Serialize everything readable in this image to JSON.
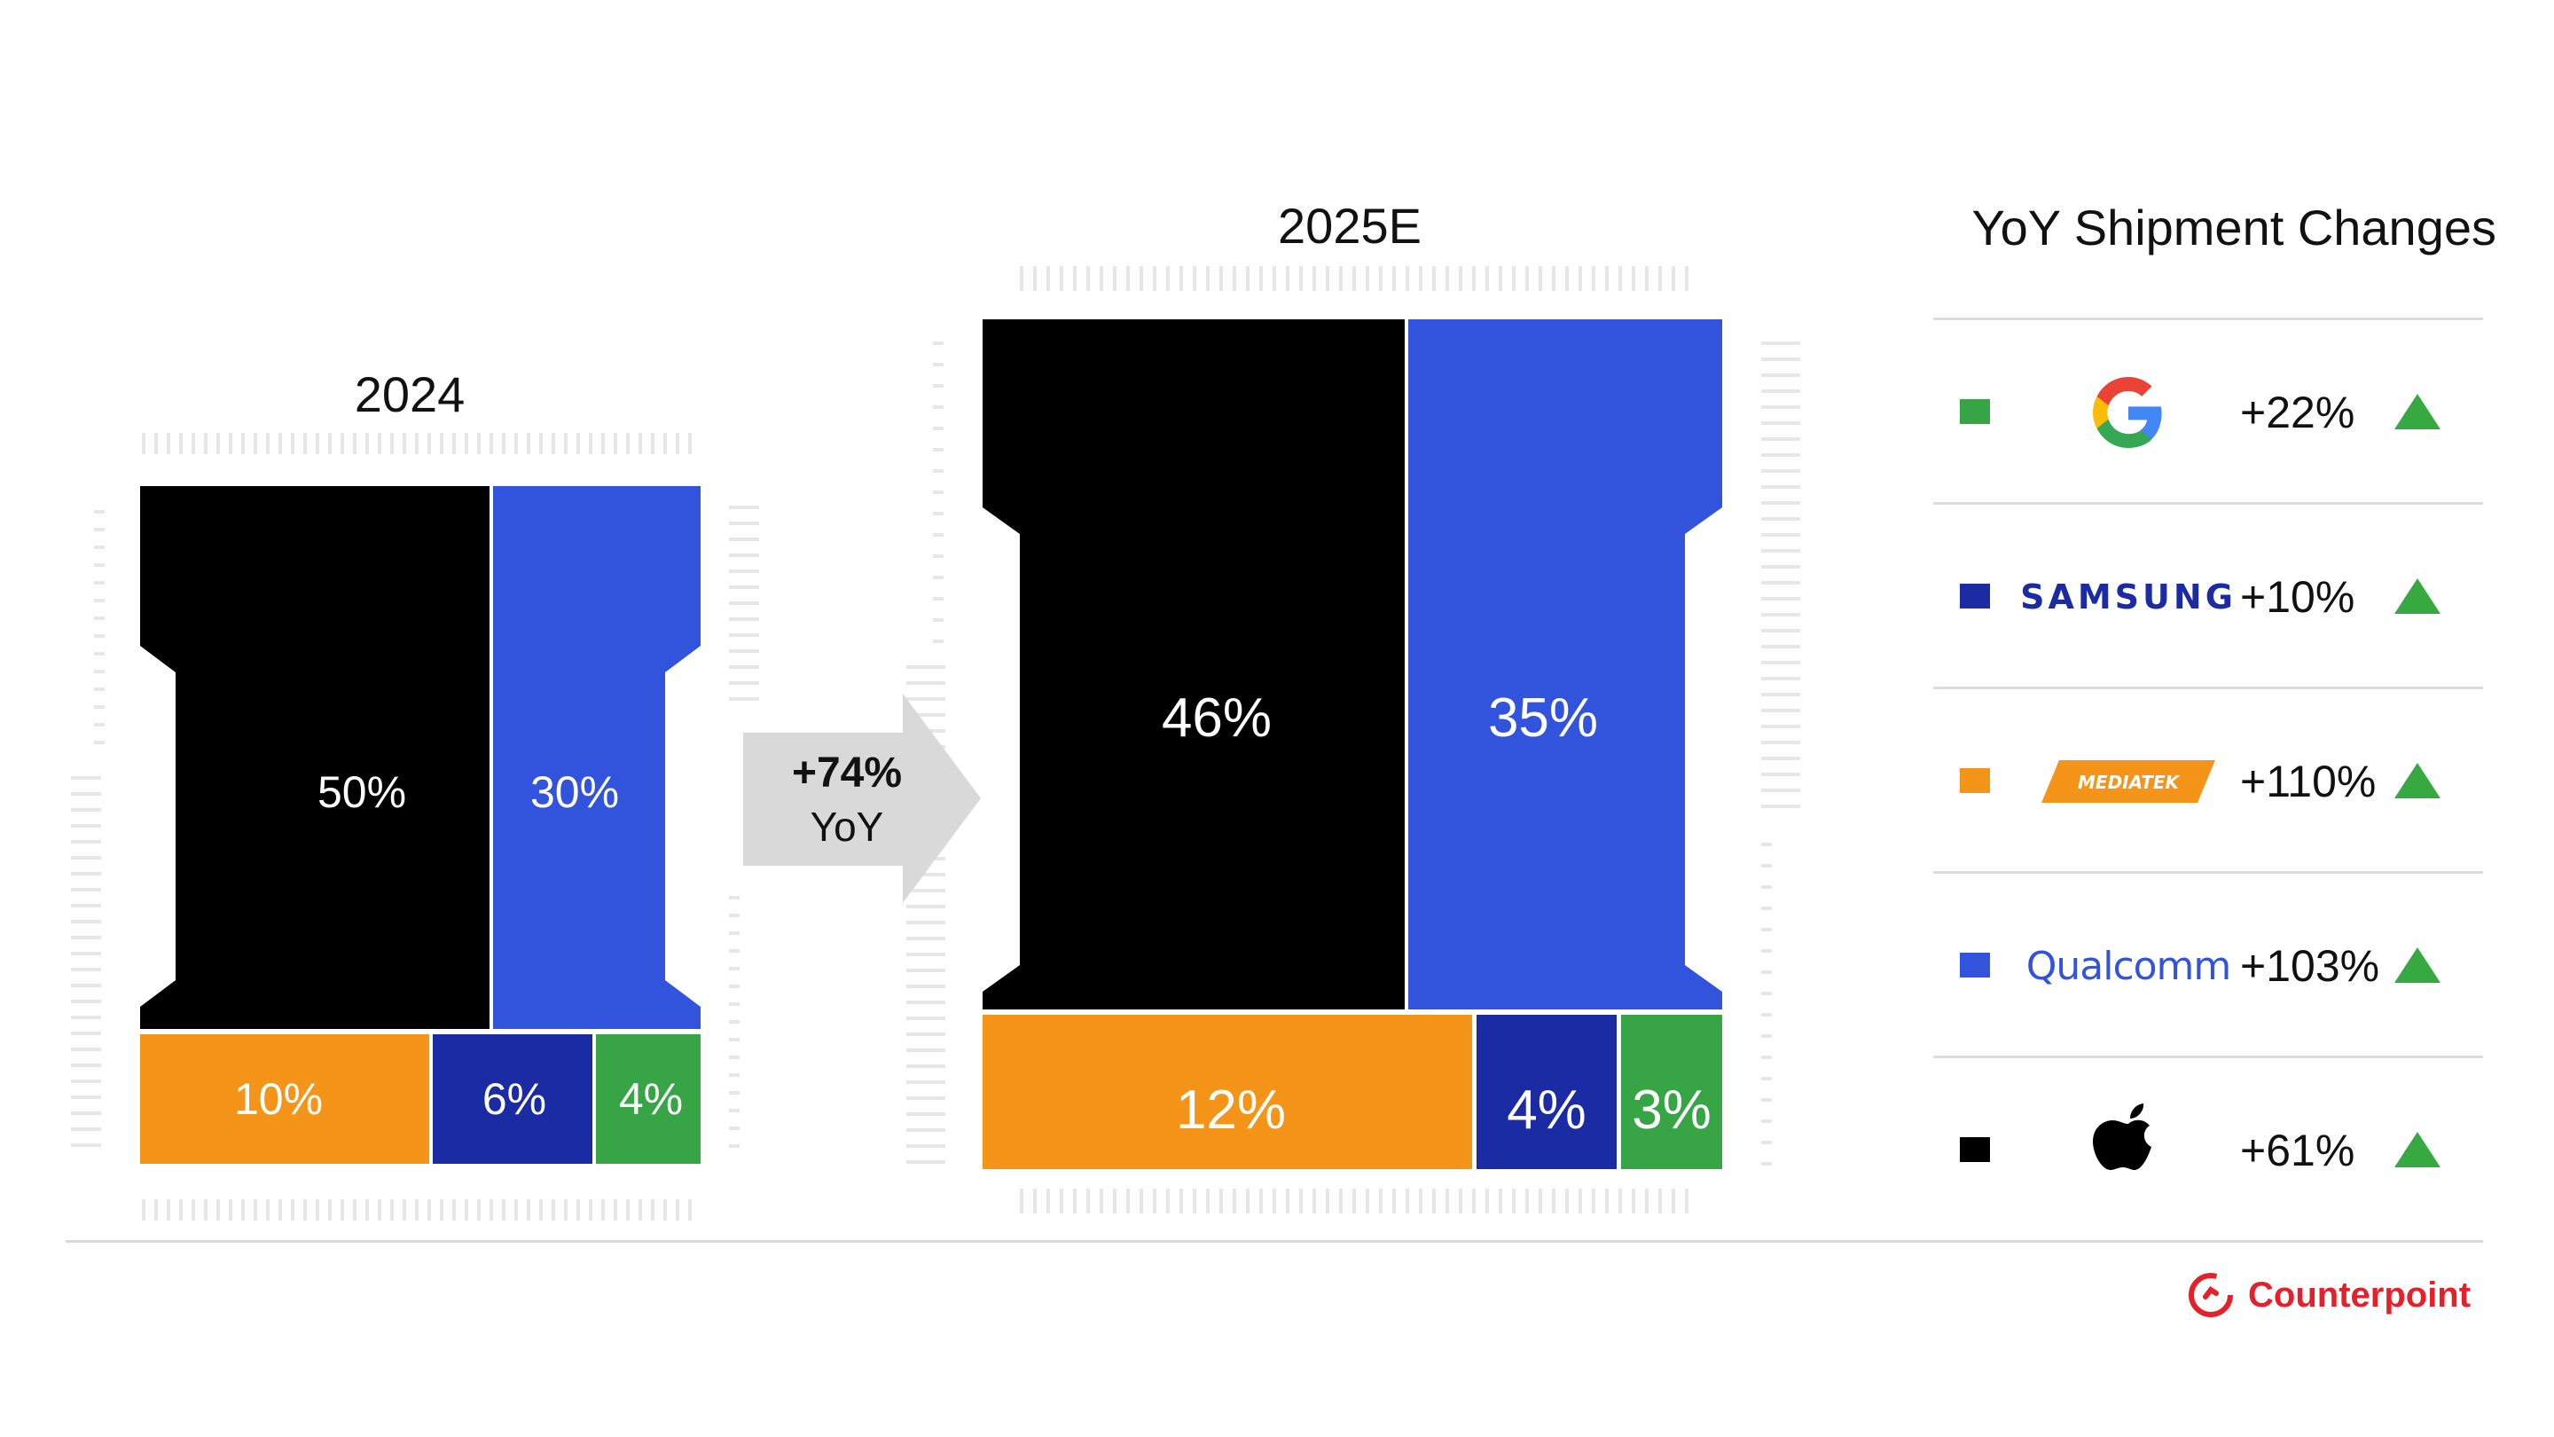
{
  "chart_data": {
    "type": "treemap",
    "arrow_label": {
      "change": "+74%",
      "unit": "YoY"
    },
    "charts": [
      {
        "title": "2024",
        "segments": [
          {
            "label": "50%",
            "value": 50,
            "color": "#000000"
          },
          {
            "label": "30%",
            "value": 30,
            "color": "#3253dc"
          },
          {
            "label": "10%",
            "value": 10,
            "color": "#f49419"
          },
          {
            "label": "6%",
            "value": 6,
            "color": "#1a2ba3"
          },
          {
            "label": "4%",
            "value": 4,
            "color": "#37a546"
          }
        ]
      },
      {
        "title": "2025E",
        "segments": [
          {
            "label": "46%",
            "value": 46,
            "color": "#000000"
          },
          {
            "label": "35%",
            "value": 35,
            "color": "#3253dc"
          },
          {
            "label": "12%",
            "value": 12,
            "color": "#f49419"
          },
          {
            "label": "4%",
            "value": 4,
            "color": "#1a2ba3"
          },
          {
            "label": "3%",
            "value": 3,
            "color": "#37a546"
          }
        ]
      }
    ],
    "legend_title": "YoY Shipment Changes",
    "legend": [
      {
        "brand": "Google",
        "color": "#37a546",
        "change": "+22%",
        "trend": "up"
      },
      {
        "brand": "SAMSUNG",
        "color": "#1a2ba3",
        "change": "+10%",
        "trend": "up"
      },
      {
        "brand": "MEDIATEK",
        "color": "#f49419",
        "change": "+110%",
        "trend": "up"
      },
      {
        "brand": "Qualcomm",
        "color": "#3253dc",
        "change": "+103%",
        "trend": "up"
      },
      {
        "brand": "Apple",
        "color": "#000000",
        "change": "+61%",
        "trend": "up"
      }
    ]
  },
  "footer": {
    "source_logo": "Counterpoint"
  },
  "colors": {
    "up_arrow": "#36a940",
    "arrow_fill": "#d9d9d9",
    "divider": "#dcdcdc"
  }
}
